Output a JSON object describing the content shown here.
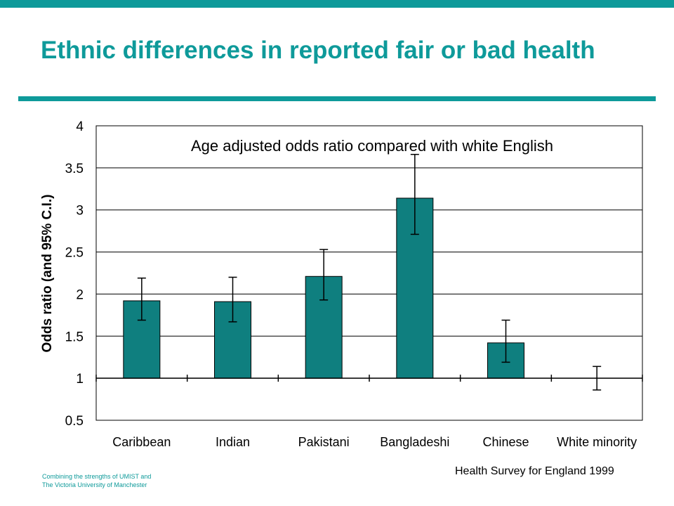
{
  "slide": {
    "title": "Ethnic differences in reported fair or bad health",
    "source": "Health Survey for England 1999",
    "footer_line1": "Combining the strengths of UMIST and",
    "footer_line2": "The Victoria University of Manchester"
  },
  "colors": {
    "accent": "#0e9a9a",
    "bar_fill": "#0f7f7f"
  },
  "chart_data": {
    "type": "bar",
    "title": "Age adjusted odds ratio compared with white English",
    "xlabel": "",
    "ylabel": "Odds ratio (and 95% C.I.)",
    "categories": [
      "Caribbean",
      "Indian",
      "Pakistani",
      "Bangladeshi",
      "Chinese",
      "White minority"
    ],
    "values": [
      1.92,
      1.91,
      2.21,
      3.14,
      1.42,
      1.0
    ],
    "ci_lower": [
      1.69,
      1.67,
      1.93,
      2.71,
      1.19,
      0.86
    ],
    "ci_upper": [
      2.19,
      2.2,
      2.53,
      3.66,
      1.69,
      1.14
    ],
    "baseline": 1,
    "ylim": [
      0.5,
      4
    ],
    "yticks": [
      "0.5",
      "1",
      "1.5",
      "2",
      "2.5",
      "3",
      "3.5",
      "4"
    ],
    "grid": true,
    "legend": false
  }
}
